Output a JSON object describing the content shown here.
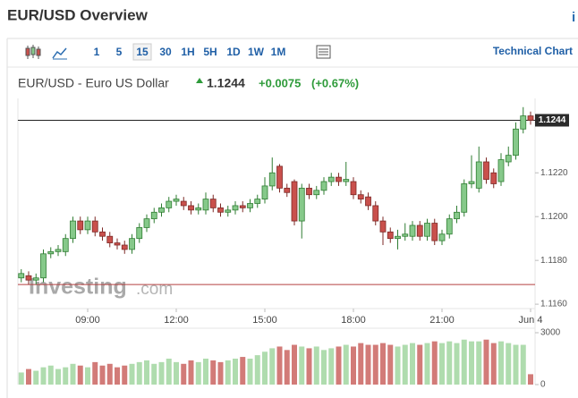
{
  "header": {
    "title": "EUR/USD Overview"
  },
  "toolbar": {
    "intervals": [
      "1",
      "5",
      "15",
      "30",
      "1H",
      "5H",
      "1D",
      "1W",
      "1M"
    ],
    "selected": 2,
    "link": "Technical Chart"
  },
  "quote": {
    "name": "EUR/USD - Euro US Dollar",
    "change": "+0.0075",
    "change_pct": "(+0.67%)"
  },
  "watermark": [
    "Investing",
    ".com"
  ],
  "chart_data": {
    "type": "candlestick",
    "last": 1.1244,
    "reference_line": 1.1169,
    "categories": [
      null,
      null,
      null,
      null,
      null,
      null,
      null,
      null,
      null,
      "09:00",
      null,
      null,
      null,
      null,
      null,
      null,
      null,
      null,
      null,
      null,
      null,
      "12:00",
      null,
      null,
      null,
      null,
      null,
      null,
      null,
      null,
      null,
      null,
      null,
      "15:00",
      null,
      null,
      null,
      null,
      null,
      null,
      null,
      null,
      null,
      null,
      null,
      "18:00",
      null,
      null,
      null,
      null,
      null,
      null,
      null,
      null,
      null,
      null,
      null,
      "21:00",
      null,
      null,
      null,
      null,
      null,
      null,
      null,
      null,
      null,
      null,
      null,
      "Jun 4"
    ],
    "open": [
      1.1172,
      1.1173,
      1.1171,
      1.1172,
      1.1183,
      1.1184,
      1.1184,
      1.119,
      1.1198,
      1.1194,
      1.1198,
      1.1193,
      1.1191,
      1.1188,
      1.1187,
      1.1185,
      1.119,
      1.1195,
      1.1199,
      1.1202,
      1.1204,
      1.1207,
      1.1207,
      1.1205,
      1.1203,
      1.1203,
      1.1208,
      1.1204,
      1.1202,
      1.1203,
      1.1205,
      1.1204,
      1.1206,
      1.1208,
      1.1214,
      1.1223,
      1.1213,
      1.1216,
      1.1198,
      1.1213,
      1.121,
      1.1212,
      1.1216,
      1.1218,
      1.1216,
      1.1216,
      1.121,
      1.1209,
      1.1205,
      1.1198,
      1.1193,
      1.119,
      1.1191,
      1.1191,
      1.1196,
      1.1191,
      1.1197,
      1.1189,
      1.1192,
      1.1199,
      1.1202,
      1.1215,
      1.1213,
      1.1225,
      1.122,
      1.1216,
      1.1225,
      1.1228,
      1.124,
      1.1246
    ],
    "high": [
      1.1176,
      1.1175,
      1.1174,
      1.1185,
      1.1186,
      1.1187,
      1.1192,
      1.12,
      1.12,
      1.12,
      1.12,
      1.1195,
      1.1193,
      1.119,
      1.1189,
      1.1192,
      1.1197,
      1.1201,
      1.1204,
      1.1206,
      1.1209,
      1.121,
      1.1209,
      1.1207,
      1.1206,
      1.1211,
      1.121,
      1.1206,
      1.1205,
      1.1207,
      1.1207,
      1.1208,
      1.121,
      1.1218,
      1.1227,
      1.1224,
      1.1215,
      1.1217,
      1.1215,
      1.1215,
      1.1214,
      1.1218,
      1.122,
      1.122,
      1.1225,
      1.1218,
      1.1212,
      1.1211,
      1.1207,
      1.12,
      1.1195,
      1.1194,
      1.1197,
      1.1198,
      1.1198,
      1.1199,
      1.1199,
      1.1194,
      1.1201,
      1.1205,
      1.1217,
      1.1228,
      1.1232,
      1.1227,
      1.1222,
      1.1229,
      1.1232,
      1.1243,
      1.125,
      1.1248
    ],
    "low": [
      1.117,
      1.1169,
      1.1169,
      1.117,
      1.1181,
      1.1182,
      1.1182,
      1.1188,
      1.1192,
      1.1192,
      1.1191,
      1.1189,
      1.1186,
      1.1185,
      1.1183,
      1.1183,
      1.1188,
      1.1193,
      1.1197,
      1.12,
      1.1202,
      1.1205,
      1.1203,
      1.1201,
      1.1201,
      1.1201,
      1.1202,
      1.12,
      1.12,
      1.1201,
      1.1202,
      1.1202,
      1.1204,
      1.1206,
      1.1212,
      1.1211,
      1.1209,
      1.1196,
      1.119,
      1.1208,
      1.1208,
      1.121,
      1.1214,
      1.1214,
      1.1214,
      1.1208,
      1.1206,
      1.1203,
      1.1196,
      1.1187,
      1.1188,
      1.1185,
      1.1189,
      1.1189,
      1.1189,
      1.1189,
      1.1187,
      1.1187,
      1.119,
      1.1197,
      1.12,
      1.1213,
      1.1211,
      1.1215,
      1.1213,
      1.1214,
      1.1223,
      1.1226,
      1.1238,
      1.1242
    ],
    "close": [
      1.1174,
      1.1171,
      1.1172,
      1.1183,
      1.1184,
      1.1185,
      1.119,
      1.1198,
      1.1194,
      1.1198,
      1.1193,
      1.1191,
      1.1188,
      1.1187,
      1.1185,
      1.119,
      1.1195,
      1.1199,
      1.1202,
      1.1204,
      1.1207,
      1.1208,
      1.1205,
      1.1203,
      1.1204,
      1.1208,
      1.1204,
      1.1202,
      1.1203,
      1.1205,
      1.1204,
      1.1206,
      1.1208,
      1.1214,
      1.122,
      1.1213,
      1.1211,
      1.1198,
      1.1213,
      1.121,
      1.1212,
      1.1216,
      1.1218,
      1.1216,
      1.1217,
      1.121,
      1.1208,
      1.1205,
      1.1198,
      1.1193,
      1.119,
      1.1191,
      1.1192,
      1.1196,
      1.1191,
      1.1197,
      1.1189,
      1.1192,
      1.1199,
      1.1202,
      1.1215,
      1.1216,
      1.1225,
      1.1217,
      1.1215,
      1.1226,
      1.1228,
      1.124,
      1.1246,
      1.1244
    ],
    "volume": [
      700,
      900,
      800,
      1000,
      1100,
      900,
      1000,
      1200,
      1100,
      1000,
      1300,
      1100,
      1200,
      1000,
      1100,
      1200,
      1300,
      1400,
      1200,
      1300,
      1500,
      1300,
      1200,
      1400,
      1300,
      1500,
      1400,
      1300,
      1400,
      1500,
      1600,
      1500,
      1700,
      1900,
      2100,
      2200,
      2000,
      2300,
      2200,
      2100,
      2200,
      2000,
      2100,
      2200,
      2300,
      2200,
      2400,
      2300,
      2300,
      2400,
      2300,
      2200,
      2300,
      2400,
      2300,
      2400,
      2500,
      2400,
      2500,
      2400,
      2600,
      2500,
      2500,
      2600,
      2400,
      2500,
      2400,
      2300,
      2300,
      600
    ],
    "ylim": [
      1.1158,
      1.1254
    ],
    "yticks": [
      {
        "value": 1.116,
        "label": "1.1160"
      },
      {
        "value": 1.118,
        "label": "1.1180"
      },
      {
        "value": 1.12,
        "label": "1.1200"
      },
      {
        "value": 1.122,
        "label": "1.1220"
      }
    ],
    "y2lim": [
      0,
      3000
    ],
    "y2ticks": [
      0,
      3000
    ],
    "up_color": "#86c98a",
    "down_color": "#c9504c",
    "volume_up_color": "#afdcae",
    "volume_down_color": "#d27b78",
    "reference_color": "#b54040"
  }
}
